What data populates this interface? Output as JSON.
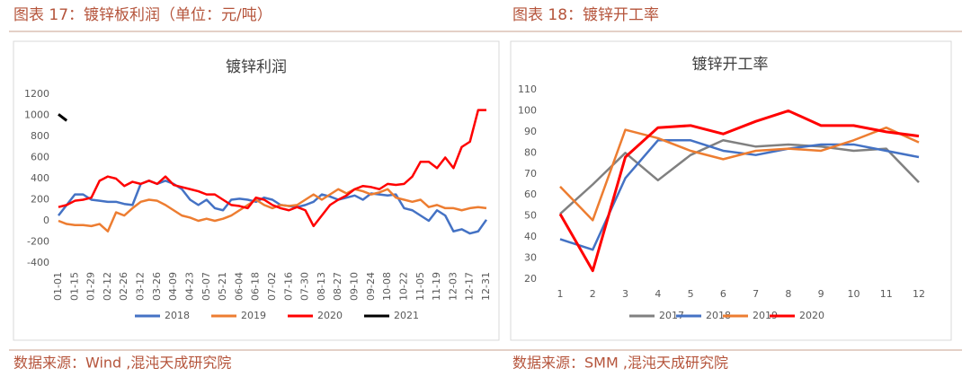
{
  "captions": [
    "图表 17：镀锌板利润（单位：元/吨）",
    "图表 18：镀锌开工率"
  ],
  "sources": [
    "数据来源：Wind ,混沌天成研究院",
    "数据来源：SMM ,混沌天成研究院"
  ],
  "chart_data": [
    {
      "type": "line",
      "title": "镀锌利润",
      "categories": [
        "01-01",
        null,
        "01-15",
        null,
        "01-29",
        null,
        "02-12",
        null,
        "02-26",
        null,
        "03-12",
        null,
        "03-26",
        null,
        "04-09",
        null,
        "04-23",
        null,
        "05-07",
        null,
        "05-21",
        null,
        "06-04",
        null,
        "06-18",
        null,
        "07-02",
        null,
        "07-16",
        null,
        "07-30",
        null,
        "08-13",
        null,
        "08-27",
        null,
        "09-10",
        null,
        "09-24",
        null,
        "10-08",
        null,
        "10-22",
        null,
        "11-05",
        null,
        "11-19",
        null,
        "12-03",
        null,
        "12-17",
        null,
        "12-31"
      ],
      "series": [
        {
          "name": "2018",
          "color": "#4472c4",
          "values": [
            50,
            150,
            250,
            250,
            200,
            190,
            180,
            180,
            160,
            150,
            350,
            380,
            350,
            380,
            350,
            300,
            200,
            150,
            200,
            120,
            100,
            200,
            210,
            200,
            180,
            220,
            200,
            150,
            140,
            130,
            150,
            180,
            250,
            230,
            200,
            220,
            240,
            200,
            260,
            250,
            240,
            250,
            120,
            100,
            50,
            0,
            100,
            50,
            -100,
            -80,
            -120,
            -100,
            10
          ]
        },
        {
          "name": "2019",
          "color": "#ed7d31",
          "values": [
            0,
            -30,
            -40,
            -40,
            -50,
            -30,
            -100,
            80,
            50,
            120,
            180,
            200,
            190,
            150,
            100,
            50,
            30,
            0,
            20,
            0,
            20,
            50,
            100,
            150,
            200,
            150,
            120,
            150,
            140,
            150,
            200,
            250,
            200,
            250,
            300,
            260,
            300,
            280,
            250,
            270,
            300,
            220,
            200,
            180,
            200,
            130,
            150,
            120,
            120,
            100,
            120,
            130,
            120
          ]
        },
        {
          "name": "2020",
          "color": "#ff0000",
          "values": [
            130,
            150,
            190,
            200,
            220,
            380,
            420,
            400,
            330,
            370,
            350,
            380,
            350,
            420,
            340,
            320,
            300,
            280,
            250,
            250,
            200,
            150,
            140,
            120,
            220,
            200,
            150,
            120,
            100,
            130,
            100,
            -50,
            50,
            150,
            200,
            240,
            300,
            330,
            320,
            300,
            350,
            340,
            350,
            420,
            560,
            560,
            500,
            600,
            500,
            700,
            750,
            1050,
            1050
          ]
        },
        {
          "name": "2021",
          "color": "#000000",
          "values": [
            1010,
            950,
            null,
            null,
            null,
            null,
            null,
            null,
            null,
            null,
            null,
            null,
            null,
            null,
            null,
            null,
            null,
            null,
            null,
            null,
            null,
            null,
            null,
            null,
            null,
            null,
            null,
            null,
            null,
            null,
            null,
            null,
            null,
            null,
            null,
            null,
            null,
            null,
            null,
            null,
            null,
            null,
            null,
            null,
            null,
            null,
            null,
            null,
            null,
            null,
            null,
            null,
            null
          ]
        }
      ],
      "ylim": [
        -400,
        1200
      ],
      "yticks": [
        -400,
        -200,
        0,
        200,
        400,
        600,
        800,
        1000,
        1200
      ],
      "grid": false
    },
    {
      "type": "line",
      "title": "镀锌开工率",
      "categories": [
        "1",
        "2",
        "3",
        "4",
        "5",
        "6",
        "7",
        "8",
        "9",
        "10",
        "11",
        "12"
      ],
      "series": [
        {
          "name": "2017",
          "color": "#808080",
          "values": [
            51,
            65,
            80,
            67,
            79,
            86,
            83,
            84,
            83,
            81,
            82,
            66
          ]
        },
        {
          "name": "2018",
          "color": "#4472c4",
          "values": [
            39,
            34,
            68,
            86,
            86,
            81,
            79,
            82,
            84,
            84,
            81,
            78
          ]
        },
        {
          "name": "2019",
          "color": "#ed7d31",
          "values": [
            64,
            48,
            91,
            87,
            81,
            77,
            81,
            82,
            81,
            86,
            92,
            85
          ]
        },
        {
          "name": "2020",
          "color": "#ff0000",
          "values": [
            51,
            24,
            78,
            92,
            93,
            89,
            95,
            100,
            93,
            93,
            90,
            88
          ]
        }
      ],
      "ylim": [
        20,
        110
      ],
      "yticks": [
        20,
        30,
        40,
        50,
        60,
        70,
        80,
        90,
        100,
        110
      ],
      "grid": false
    }
  ]
}
